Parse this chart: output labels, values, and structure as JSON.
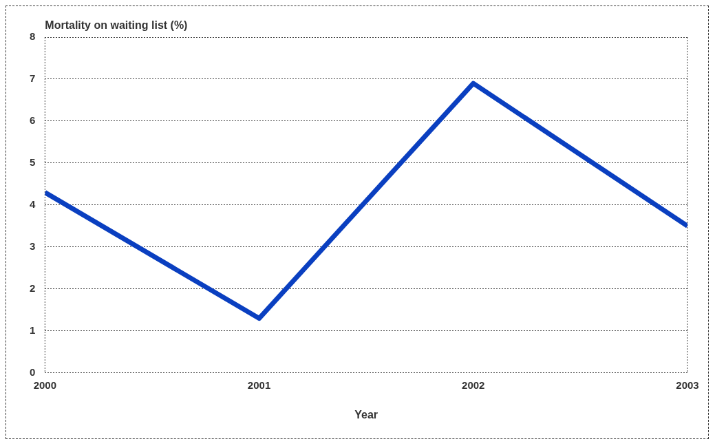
{
  "chart_data": {
    "type": "line",
    "ylabel": "Mortality on waiting list (%)",
    "xlabel": "Year",
    "x": [
      2000,
      2001,
      2002,
      2003
    ],
    "series": [
      {
        "color": "#0a3fc0",
        "values": [
          4.3,
          1.3,
          6.9,
          3.5
        ]
      }
    ],
    "xlim": [
      2000,
      2003
    ],
    "xticks": [
      2000,
      2001,
      2002,
      2003
    ],
    "ylim": [
      0,
      8
    ],
    "yticks": [
      0,
      1,
      2,
      3,
      4,
      5,
      6,
      7,
      8
    ],
    "grid": "y",
    "legend": false,
    "marker": "none",
    "line_style": "solid"
  }
}
